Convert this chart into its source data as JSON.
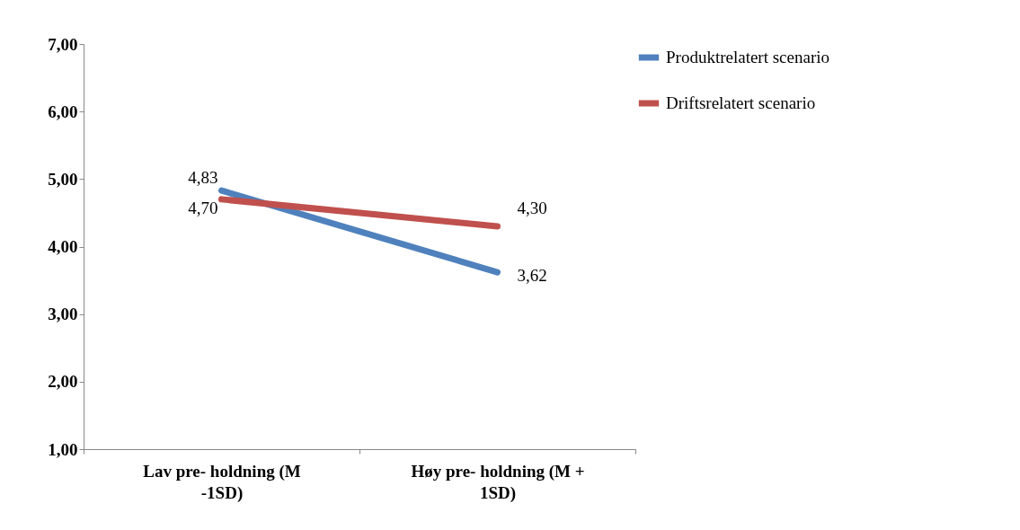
{
  "chart_data": {
    "type": "line",
    "categories": [
      "Lav pre- holdning (M -1SD)",
      "Høy pre- holdning (M + 1SD)"
    ],
    "series": [
      {
        "name": "Produktrelatert scenario",
        "color": "#4f81bd",
        "values": [
          4.83,
          3.62
        ],
        "value_labels": [
          "4,83",
          "3,62"
        ]
      },
      {
        "name": "Driftsrelatert scenario",
        "color": "#c0504d",
        "values": [
          4.7,
          4.3
        ],
        "value_labels": [
          "4,70",
          "4,30"
        ]
      }
    ],
    "ylim": [
      1,
      7
    ],
    "yticks": [
      {
        "value": 1,
        "label": "1,00"
      },
      {
        "value": 2,
        "label": "2,00"
      },
      {
        "value": 3,
        "label": "3,00"
      },
      {
        "value": 4,
        "label": "4,00"
      },
      {
        "value": 5,
        "label": "5,00"
      },
      {
        "value": 6,
        "label": "6,00"
      },
      {
        "value": 7,
        "label": "7,00"
      }
    ],
    "grid": false,
    "legend": "top right",
    "marker": "none",
    "line_style": "solid"
  }
}
